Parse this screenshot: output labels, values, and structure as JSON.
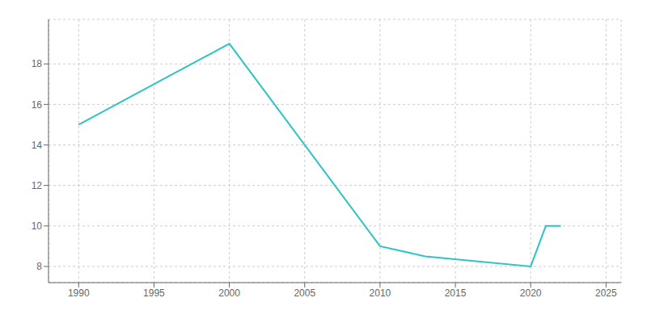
{
  "chart_data": {
    "type": "line",
    "x": [
      1990,
      2000,
      2010,
      2013,
      2020,
      2021,
      2022
    ],
    "values": [
      15,
      19,
      9,
      8.5,
      8,
      10,
      10
    ],
    "color": "#2EC4C4",
    "xlim": [
      1988,
      2026
    ],
    "ylim": [
      7.2,
      20.2
    ],
    "xticks": [
      1990,
      1995,
      2000,
      2005,
      2010,
      2015,
      2020,
      2025
    ],
    "yticks": [
      8,
      10,
      12,
      14,
      16,
      18
    ],
    "grid": true
  }
}
